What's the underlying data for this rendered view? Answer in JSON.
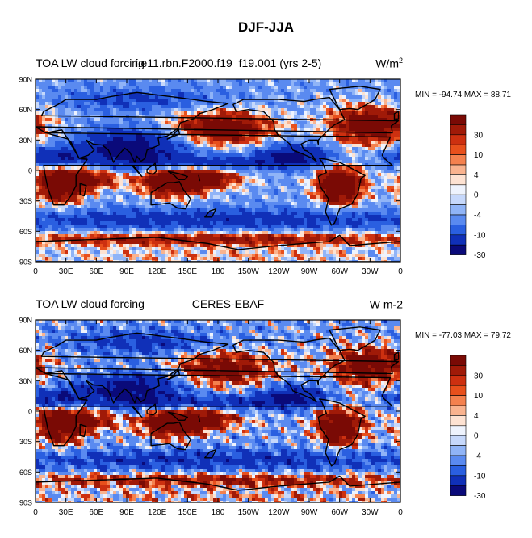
{
  "figure": {
    "title": "DJF-JJA"
  },
  "panels": [
    {
      "left_title": "TOA LW cloud forcing",
      "center_title": "f.e11.rbn.F2000.f19_f19.001 (yrs 2-5)",
      "units": "W/m",
      "units_sup": "2",
      "minmax": "MIN = -94.74  MAX =  88.71"
    },
    {
      "left_title": "TOA LW cloud forcing",
      "center_title": "CERES-EBAF",
      "units": "W m-2",
      "units_sup": "",
      "minmax": "MIN = -77.03  MAX =  79.72"
    }
  ],
  "colorbar_labels": [
    "30",
    "10",
    "4",
    "0",
    "-4",
    "-10",
    "-30"
  ],
  "colors": {
    "levels": [
      "#0a0a7a",
      "#1030b8",
      "#2a5fe0",
      "#5a8af0",
      "#90b4f7",
      "#c6d8fb",
      "#eef3fd",
      "#fde2d2",
      "#f9b38f",
      "#f4814e",
      "#e8501c",
      "#cd3010",
      "#a01a08",
      "#7a0a05"
    ]
  },
  "chart_data": [
    {
      "type": "heatmap",
      "title": "TOA LW cloud forcing",
      "subtitle": "f.e11.rbn.F2000.f19_f19.001 (yrs 2-5)",
      "units": "W/m2",
      "min": -94.74,
      "max": 88.71,
      "x_ticks": [
        "0",
        "30E",
        "60E",
        "90E",
        "120E",
        "150E",
        "180",
        "150W",
        "120W",
        "90W",
        "60W",
        "30W",
        "0"
      ],
      "y_ticks": [
        "90N",
        "60N",
        "30N",
        "0",
        "30S",
        "60S",
        "90S"
      ],
      "xlim": [
        0,
        360
      ],
      "ylim": [
        -90,
        90
      ],
      "contour_levels": [
        -30,
        -10,
        -4,
        0,
        4,
        10,
        30
      ]
    },
    {
      "type": "heatmap",
      "title": "TOA LW cloud forcing",
      "subtitle": "CERES-EBAF",
      "units": "W m-2",
      "min": -77.03,
      "max": 79.72,
      "x_ticks": [
        "0",
        "30E",
        "60E",
        "90E",
        "120E",
        "150E",
        "180",
        "150W",
        "120W",
        "90W",
        "60W",
        "30W",
        "0"
      ],
      "y_ticks": [
        "90N",
        "60N",
        "30N",
        "0",
        "30S",
        "60S",
        "90S"
      ],
      "xlim": [
        0,
        360
      ],
      "ylim": [
        -90,
        90
      ],
      "contour_levels": [
        -30,
        -10,
        -4,
        0,
        4,
        10,
        30
      ]
    }
  ]
}
